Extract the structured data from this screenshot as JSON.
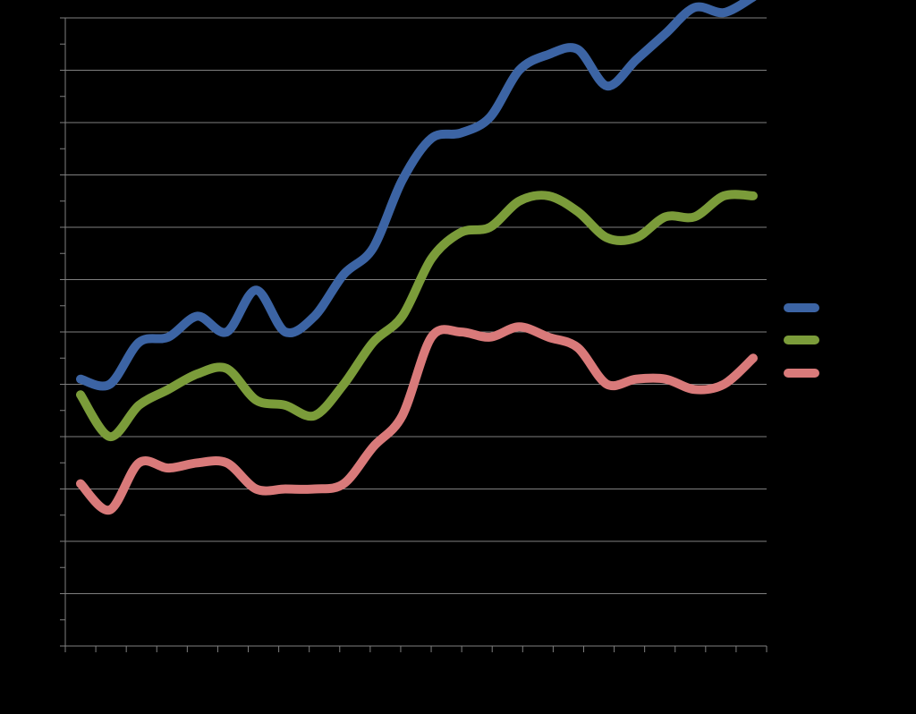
{
  "chart_data": {
    "type": "line",
    "title": "",
    "xlabel": "",
    "ylabel": "",
    "ylim": [
      0,
      12
    ],
    "y_major_step": 1,
    "y_minor_step": 0.5,
    "x_tick_count": 24,
    "grid": true,
    "legend_position": "right",
    "series": [
      {
        "color": "#3c64a4",
        "values": [
          5.1,
          5.0,
          5.8,
          5.9,
          6.3,
          6.0,
          6.8,
          6.0,
          6.3,
          7.1,
          7.6,
          8.9,
          9.7,
          9.8,
          10.1,
          11.0,
          11.3,
          11.4,
          10.7,
          11.2,
          11.7,
          12.2,
          12.1,
          12.4
        ]
      },
      {
        "color": "#7b9c3a",
        "values": [
          4.8,
          4.0,
          4.6,
          4.9,
          5.2,
          5.3,
          4.7,
          4.6,
          4.4,
          5.0,
          5.8,
          6.3,
          7.4,
          7.9,
          8.0,
          8.5,
          8.6,
          8.3,
          7.8,
          7.8,
          8.2,
          8.2,
          8.6,
          8.6
        ]
      },
      {
        "color": "#d97a7a",
        "values": [
          3.1,
          2.6,
          3.5,
          3.4,
          3.5,
          3.5,
          3.0,
          3.0,
          3.0,
          3.1,
          3.8,
          4.4,
          5.9,
          6.0,
          5.9,
          6.1,
          5.9,
          5.7,
          5.0,
          5.1,
          5.1,
          4.9,
          5.0,
          5.5
        ]
      }
    ]
  }
}
